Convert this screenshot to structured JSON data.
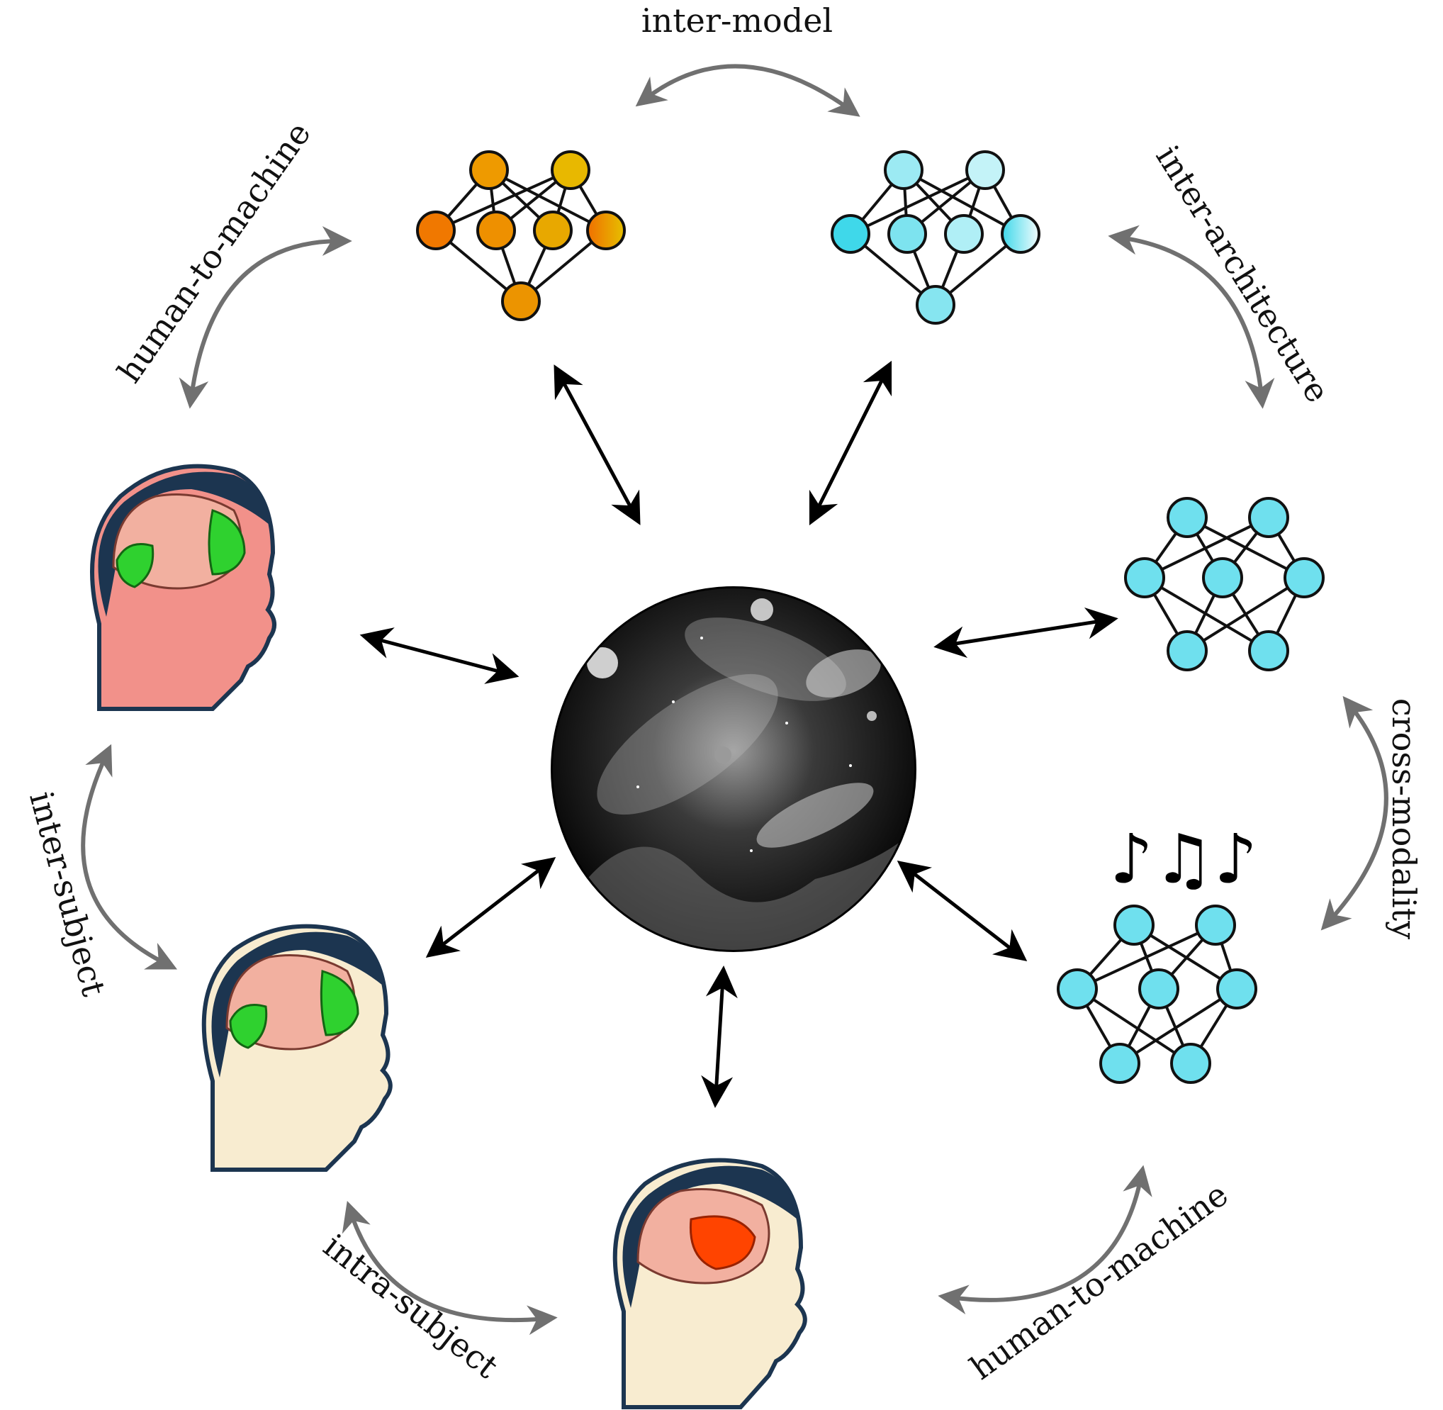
{
  "center": {
    "name": "universe-image",
    "tone": "grayscale space scene"
  },
  "labels": {
    "inter_model": "inter-model",
    "human_to_machine_top": "human-to-machine",
    "inter_architecture": "inter-architecture",
    "cross_modality": "cross-modality",
    "inter_subject": "inter-subject",
    "intra_subject": "intra-subject",
    "human_to_machine_bottom": "human-to-machine"
  },
  "music_symbol": "♪♫♪",
  "colors": {
    "orange_network": [
      "#f07800",
      "#f4a000",
      "#e8c000"
    ],
    "cyan_network": "#6fe0ee",
    "green_brain_region": "#2fd12f",
    "red_brain_region": "#ff4400",
    "gray_arrows": "#707070",
    "black_arrows": "#000000"
  }
}
